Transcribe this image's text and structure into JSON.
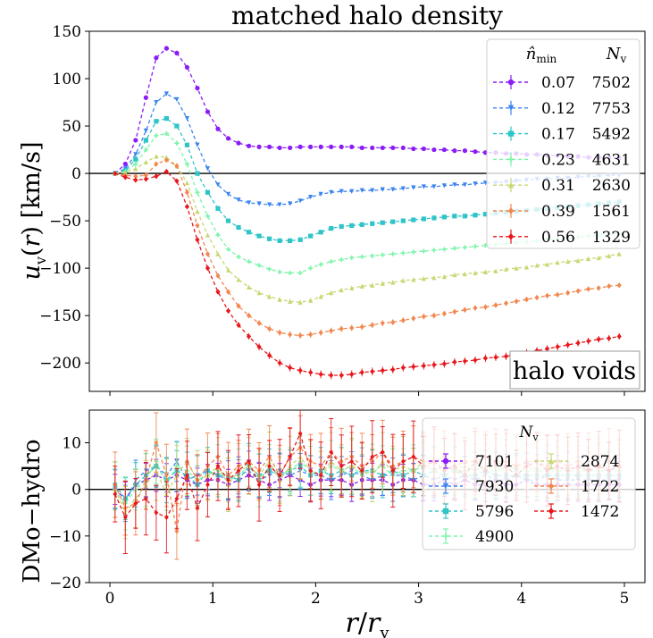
{
  "chart_data": [
    {
      "type": "line",
      "panel": "top",
      "title": "matched halo density",
      "ylabel": "u_v(r) [km/s]",
      "xlabel": "",
      "xlim": [
        -0.2,
        5.2
      ],
      "ylim": [
        -230,
        150
      ],
      "yticks": [
        150,
        100,
        50,
        0,
        -50,
        -100,
        -150,
        -200
      ],
      "xticks": [
        0,
        1,
        2,
        3,
        4,
        5
      ],
      "annotation": "halo voids",
      "legend": {
        "position": "top-right",
        "header_left": "n̂min",
        "header_right": "Nv"
      },
      "x": [
        0.05,
        0.15,
        0.25,
        0.35,
        0.45,
        0.55,
        0.65,
        0.75,
        0.85,
        0.95,
        1.05,
        1.15,
        1.25,
        1.35,
        1.45,
        1.55,
        1.65,
        1.75,
        1.85,
        1.95,
        2.05,
        2.15,
        2.25,
        2.35,
        2.45,
        2.55,
        2.65,
        2.75,
        2.85,
        2.95,
        3.05,
        3.15,
        3.25,
        3.35,
        3.45,
        3.55,
        3.65,
        3.75,
        3.85,
        3.95,
        4.05,
        4.15,
        4.25,
        4.35,
        4.45,
        4.55,
        4.65,
        4.75,
        4.85,
        4.95
      ],
      "series": [
        {
          "name": "0.07",
          "n": "7502",
          "color": "#8b1cf6",
          "marker": "circle",
          "values": [
            0,
            10,
            35,
            80,
            122,
            132,
            127,
            112,
            90,
            65,
            47,
            37,
            32,
            29,
            28,
            28,
            27,
            27,
            28,
            28,
            28,
            28,
            28,
            28,
            27,
            27,
            27,
            27,
            27,
            26,
            26,
            25,
            25,
            24,
            24,
            23,
            22,
            22,
            21,
            21,
            20,
            20,
            19,
            19,
            18,
            18,
            17,
            17,
            17,
            16
          ]
        },
        {
          "name": "0.12",
          "n": "7753",
          "color": "#3c84f0",
          "marker": "triangle-down",
          "values": [
            0,
            5,
            20,
            45,
            75,
            84,
            78,
            58,
            30,
            5,
            -12,
            -22,
            -28,
            -31,
            -32,
            -33,
            -33,
            -32,
            -29,
            -25,
            -22,
            -20,
            -19,
            -19,
            -18,
            -18,
            -17,
            -17,
            -16,
            -15,
            -14,
            -14,
            -13,
            -12,
            -12,
            -11,
            -10,
            -10,
            -9,
            -8,
            -7,
            -6,
            -6,
            -5,
            -5,
            -4,
            -3,
            -3,
            -2,
            -2
          ]
        },
        {
          "name": "0.17",
          "n": "5492",
          "color": "#2ec4c8",
          "marker": "square",
          "values": [
            0,
            3,
            15,
            35,
            55,
            58,
            50,
            30,
            0,
            -20,
            -37,
            -50,
            -57,
            -62,
            -66,
            -69,
            -71,
            -71,
            -70,
            -66,
            -62,
            -58,
            -56,
            -55,
            -54,
            -53,
            -52,
            -51,
            -50,
            -49,
            -48,
            -47,
            -46,
            -45,
            -45,
            -44,
            -43,
            -42,
            -41,
            -40,
            -39,
            -38,
            -37,
            -36,
            -35,
            -34,
            -33,
            -32,
            -31,
            -30
          ]
        },
        {
          "name": "0.23",
          "n": "4631",
          "color": "#7af5a8",
          "marker": "plus",
          "values": [
            0,
            2,
            10,
            25,
            40,
            42,
            32,
            10,
            -20,
            -45,
            -65,
            -80,
            -88,
            -93,
            -97,
            -101,
            -104,
            -105,
            -105,
            -100,
            -96,
            -93,
            -91,
            -89,
            -88,
            -87,
            -86,
            -85,
            -84,
            -83,
            -82,
            -81,
            -80,
            -79,
            -78,
            -77,
            -76,
            -75,
            -74,
            -73,
            -72,
            -71,
            -70,
            -69,
            -68,
            -67,
            -66,
            -65,
            -64,
            -63
          ]
        },
        {
          "name": "0.31",
          "n": "2630",
          "color": "#c6d872",
          "marker": "triangle-up",
          "values": [
            0,
            1,
            5,
            12,
            18,
            17,
            8,
            -10,
            -40,
            -65,
            -85,
            -102,
            -112,
            -120,
            -126,
            -130,
            -133,
            -135,
            -136,
            -134,
            -130,
            -126,
            -123,
            -121,
            -119,
            -118,
            -116,
            -115,
            -113,
            -112,
            -111,
            -110,
            -109,
            -107,
            -106,
            -105,
            -104,
            -103,
            -101,
            -100,
            -99,
            -97,
            -96,
            -94,
            -93,
            -92,
            -90,
            -89,
            -87,
            -85
          ]
        },
        {
          "name": "0.39",
          "n": "1561",
          "color": "#f2874f",
          "marker": "diamond",
          "values": [
            0,
            -2,
            -3,
            -2,
            10,
            14,
            8,
            -20,
            -55,
            -85,
            -108,
            -125,
            -140,
            -150,
            -158,
            -164,
            -168,
            -170,
            -171,
            -170,
            -168,
            -166,
            -164,
            -163,
            -162,
            -160,
            -158,
            -157,
            -155,
            -153,
            -151,
            -150,
            -148,
            -146,
            -144,
            -142,
            -141,
            -139,
            -137,
            -135,
            -133,
            -131,
            -129,
            -128,
            -126,
            -124,
            -122,
            -121,
            -119,
            -118
          ]
        },
        {
          "name": "0.56",
          "n": "1329",
          "color": "#e8161b",
          "marker": "diamond",
          "values": [
            0,
            -4,
            -7,
            -6,
            -3,
            2,
            -8,
            -35,
            -70,
            -100,
            -125,
            -145,
            -160,
            -172,
            -183,
            -192,
            -200,
            -205,
            -208,
            -210,
            -212,
            -213,
            -213,
            -212,
            -210,
            -209,
            -208,
            -207,
            -205,
            -204,
            -203,
            -202,
            -201,
            -199,
            -198,
            -197,
            -195,
            -194,
            -193,
            -191,
            -189,
            -187,
            -185,
            -183,
            -181,
            -179,
            -177,
            -175,
            -174,
            -172
          ]
        }
      ]
    },
    {
      "type": "line",
      "panel": "bottom",
      "title": "",
      "ylabel": "DMo−hydro",
      "xlabel": "r/r_v",
      "xlim": [
        -0.2,
        5.2
      ],
      "ylim": [
        -20,
        17
      ],
      "yticks": [
        10,
        0,
        -10,
        -20
      ],
      "xticks": [
        0,
        1,
        2,
        3,
        4,
        5
      ],
      "legend": {
        "position": "top-right",
        "header": "Nv"
      },
      "x": [
        0.05,
        0.15,
        0.25,
        0.35,
        0.45,
        0.55,
        0.65,
        0.75,
        0.85,
        0.95,
        1.05,
        1.15,
        1.25,
        1.35,
        1.45,
        1.55,
        1.65,
        1.75,
        1.85,
        1.95,
        2.05,
        2.15,
        2.25,
        2.35,
        2.45,
        2.55,
        2.65,
        2.75,
        2.85,
        2.95,
        3.05,
        3.15,
        3.25,
        3.35,
        3.45,
        3.55,
        3.65,
        3.75,
        3.85,
        3.95,
        4.05,
        4.15,
        4.25,
        4.35,
        4.45,
        4.55,
        4.65,
        4.75,
        4.85,
        4.95
      ],
      "series": [
        {
          "name": "7101",
          "color": "#8b1cf6",
          "marker": "circle",
          "values": [
            0,
            -2,
            1,
            2,
            3,
            2,
            3,
            2,
            1,
            2,
            2,
            1,
            2,
            3,
            2,
            1,
            2,
            3,
            2,
            1,
            2,
            2,
            2,
            1,
            2,
            2,
            2,
            1,
            2,
            2,
            1,
            1,
            2,
            1,
            2,
            1,
            1,
            2,
            1,
            1,
            2,
            1,
            1,
            1,
            1,
            1,
            1,
            1,
            1,
            1
          ]
        },
        {
          "name": "7930",
          "color": "#3c84f0",
          "marker": "triangle-down",
          "values": [
            0,
            -3,
            2,
            4,
            5,
            3,
            6,
            2,
            3,
            4,
            3,
            2,
            3,
            4,
            2,
            3,
            4,
            3,
            4,
            3,
            3,
            2,
            3,
            4,
            3,
            2,
            3,
            3,
            3,
            2,
            3,
            2,
            3,
            2,
            3,
            2,
            3,
            2,
            2,
            3,
            2,
            2,
            3,
            2,
            2,
            2,
            2,
            2,
            2,
            2
          ]
        },
        {
          "name": "5796",
          "color": "#2ec4c8",
          "marker": "square",
          "values": [
            1,
            -2,
            1,
            3,
            5,
            2,
            4,
            3,
            1,
            4,
            3,
            3,
            2,
            5,
            3,
            4,
            3,
            4,
            5,
            3,
            4,
            3,
            4,
            3,
            4,
            4,
            3,
            4,
            3,
            4,
            3,
            4,
            3,
            4,
            3,
            3,
            4,
            3,
            3,
            3,
            3,
            3,
            3,
            3,
            3,
            3,
            3,
            3,
            3,
            3
          ]
        },
        {
          "name": "4900",
          "color": "#7af5a8",
          "marker": "plus",
          "values": [
            0,
            -3,
            0,
            2,
            6,
            1,
            5,
            4,
            2,
            3,
            4,
            2,
            3,
            5,
            2,
            5,
            3,
            4,
            6,
            4,
            3,
            5,
            4,
            5,
            3,
            4,
            5,
            3,
            4,
            4,
            5,
            4,
            5,
            4,
            4,
            5,
            4,
            4,
            5,
            4,
            4,
            4,
            4,
            4,
            4,
            4,
            4,
            4,
            4,
            4
          ]
        },
        {
          "name": "2874",
          "color": "#c6d872",
          "marker": "triangle-up",
          "values": [
            0,
            -5,
            -2,
            1,
            4,
            -1,
            3,
            6,
            2,
            3,
            5,
            1,
            4,
            5,
            3,
            6,
            2,
            5,
            7,
            4,
            3,
            6,
            4,
            5,
            4,
            3,
            6,
            4,
            5,
            4,
            6,
            4,
            5,
            4,
            5,
            4,
            5,
            5,
            4,
            5,
            5,
            4,
            5,
            4,
            5,
            4,
            5,
            5,
            4,
            5
          ]
        },
        {
          "name": "1722",
          "color": "#f2874f",
          "marker": "diamond",
          "values": [
            1,
            -4,
            -3,
            2,
            10,
            3,
            -9,
            6,
            2,
            5,
            7,
            3,
            5,
            6,
            4,
            7,
            3,
            7,
            9,
            6,
            5,
            8,
            6,
            7,
            5,
            6,
            8,
            5,
            6,
            7,
            6,
            6,
            7,
            5,
            6,
            6,
            7,
            6,
            6,
            5,
            6,
            6,
            5,
            6,
            5,
            6,
            5,
            5,
            6,
            5
          ]
        },
        {
          "name": "1472",
          "color": "#e8161b",
          "marker": "diamond",
          "values": [
            -1,
            -6,
            -3,
            -2,
            -5,
            -6,
            -2,
            3,
            -4,
            1,
            5,
            2,
            4,
            6,
            1,
            5,
            3,
            7,
            12,
            4,
            3,
            8,
            5,
            6,
            4,
            7,
            8,
            4,
            6,
            7,
            5,
            6,
            4,
            5,
            3,
            6,
            4,
            6,
            5,
            3,
            5,
            6,
            4,
            5,
            4,
            5,
            4,
            5,
            4,
            5
          ]
        }
      ]
    }
  ]
}
